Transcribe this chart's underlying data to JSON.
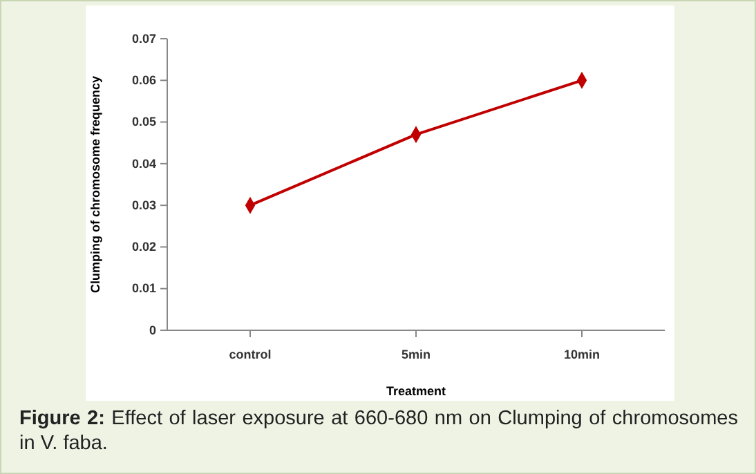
{
  "chart_data": {
    "type": "line",
    "xlabel": "Treatment",
    "ylabel": "Clumping of chromosome frequency",
    "categories": [
      "control",
      "5min",
      "10min"
    ],
    "series": [
      {
        "color": "#c00000",
        "values": [
          0.03,
          0.047,
          0.06
        ]
      }
    ],
    "ylim": [
      0,
      0.07
    ],
    "yticks": [
      0,
      0.01,
      0.02,
      0.03,
      0.04,
      0.05,
      0.06,
      0.07
    ],
    "marker": "diamond",
    "annotations": [
      "Figure 2: Effect of laser exposure at 660-680 nm on Clumping of chromosomes in V. faba."
    ]
  }
}
